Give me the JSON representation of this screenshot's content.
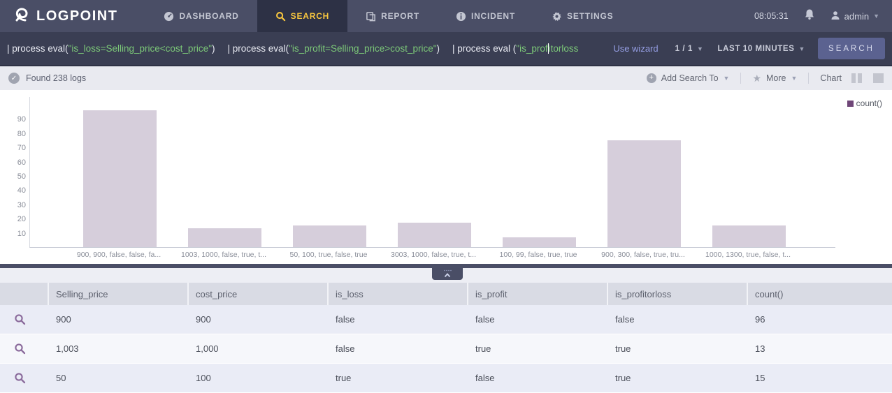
{
  "nav": {
    "brand": "LOGPOINT",
    "items": [
      {
        "label": "DASHBOARD",
        "icon": "gauge-icon",
        "active": false
      },
      {
        "label": "SEARCH",
        "icon": "search-icon",
        "active": true
      },
      {
        "label": "REPORT",
        "icon": "report-icon",
        "active": false
      },
      {
        "label": "INCIDENT",
        "icon": "info-icon",
        "active": false
      },
      {
        "label": "SETTINGS",
        "icon": "gear-icon",
        "active": false
      }
    ],
    "clock": "08:05:31",
    "user": "admin"
  },
  "query": {
    "pipe1_prefix": "| process eval(",
    "pipe1_arg": "\"is_loss=Selling_price<cost_price\"",
    "pipe1_suffix": ")",
    "pipe2_prefix": "| process eval(",
    "pipe2_arg": "\"is_profit=Selling_price>cost_price\"",
    "pipe2_suffix": ")",
    "pipe3_prefix": "| process eval (",
    "pipe3_arg_before_cursor": "\"is_prof",
    "pipe3_arg_after_cursor": "itorloss",
    "use_wizard": "Use wizard",
    "pagination": "1 / 1",
    "time_range": "LAST 10 MINUTES",
    "search_button": "SEARCH"
  },
  "statusbar": {
    "found_text": "Found 238 logs",
    "add_search_to": "Add Search To",
    "more": "More",
    "chart": "Chart"
  },
  "chart_data": {
    "type": "bar",
    "categories": [
      "900, 900, false, false, fa...",
      "1003, 1000, false, true, t...",
      "50, 100, true, false, true",
      "3003, 1000, false, true, t...",
      "100, 99, false, true, true",
      "900, 300, false, true, tru...",
      "1000, 1300, true, false, t..."
    ],
    "values": [
      96,
      13,
      15,
      17,
      7,
      75,
      15
    ],
    "series_name": "count()",
    "title": "",
    "xlabel": "",
    "ylabel": "",
    "yticks": [
      10,
      20,
      30,
      40,
      50,
      60,
      70,
      80,
      90
    ],
    "ylim": [
      0,
      105
    ],
    "grid": false,
    "legend_position": "top-right",
    "bar_color": "#d6cedb",
    "legend_color": "#6f4678"
  },
  "table": {
    "columns": [
      "Selling_price",
      "cost_price",
      "is_loss",
      "is_profit",
      "is_profitorloss",
      "count()"
    ],
    "rows": [
      [
        "900",
        "900",
        "false",
        "false",
        "false",
        "96"
      ],
      [
        "1,003",
        "1,000",
        "false",
        "true",
        "true",
        "13"
      ],
      [
        "50",
        "100",
        "true",
        "false",
        "true",
        "15"
      ]
    ]
  },
  "colors": {
    "nav_bg": "#4a4e66",
    "active_tab_text": "#f6c53f",
    "query_green": "#7cc878",
    "search_button_bg": "#5b6290",
    "bar_fill": "#d6cedb",
    "legend_purple": "#6f4678",
    "row_odd_bg": "#eaecf6",
    "row_even_bg": "#f6f7fb"
  }
}
